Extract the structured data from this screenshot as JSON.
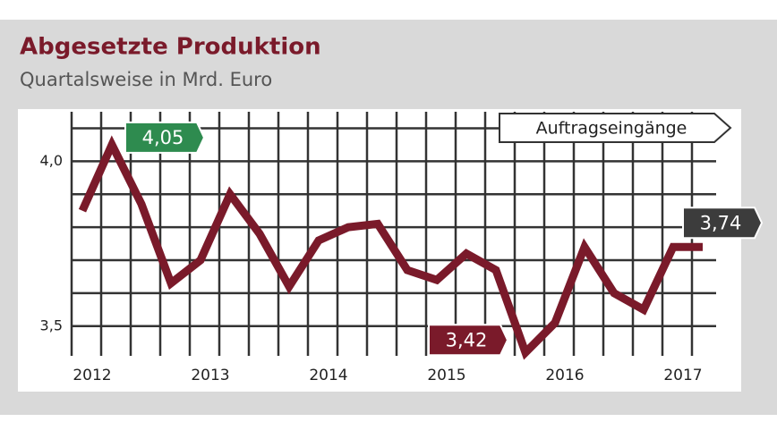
{
  "chart_data": {
    "type": "line",
    "title": "Abgesetzte Produktion",
    "subtitle": "Quartalsweise in Mrd. Euro",
    "categories": [
      "2012",
      null,
      null,
      null,
      "2013",
      null,
      null,
      null,
      "2014",
      null,
      null,
      null,
      "2015",
      null,
      null,
      null,
      "2016",
      null,
      null,
      null,
      "2017",
      null
    ],
    "series": [
      {
        "name": "Auftragseingänge",
        "color": "#7a1a2a",
        "values": [
          3.85,
          4.05,
          3.87,
          3.63,
          3.7,
          3.9,
          3.78,
          3.62,
          3.76,
          3.8,
          3.81,
          3.67,
          3.64,
          3.72,
          3.67,
          3.42,
          3.51,
          3.74,
          3.6,
          3.55,
          3.74,
          3.74
        ],
        "value_labels": [
          null,
          "4,05",
          null,
          null,
          null,
          null,
          null,
          null,
          null,
          null,
          null,
          null,
          null,
          null,
          null,
          "3,42",
          null,
          null,
          null,
          null,
          null,
          "3,74"
        ],
        "value_label_colors": [
          null,
          "#2e8b4f",
          null,
          null,
          null,
          null,
          null,
          null,
          null,
          null,
          null,
          null,
          null,
          null,
          null,
          "#7a1a2a",
          null,
          null,
          null,
          null,
          null,
          "#3c3c3c"
        ]
      }
    ],
    "ylim": [
      3.41,
      4.15
    ],
    "yticks": [
      {
        "value": 3.5,
        "label": "3,5"
      },
      {
        "value": 3.6,
        "label": null
      },
      {
        "value": 3.7,
        "label": null
      },
      {
        "value": 3.8,
        "label": null
      },
      {
        "value": 3.9,
        "label": null
      },
      {
        "value": 4.0,
        "label": "4,0"
      },
      {
        "value": 4.1,
        "label": null
      }
    ],
    "grid": true
  }
}
